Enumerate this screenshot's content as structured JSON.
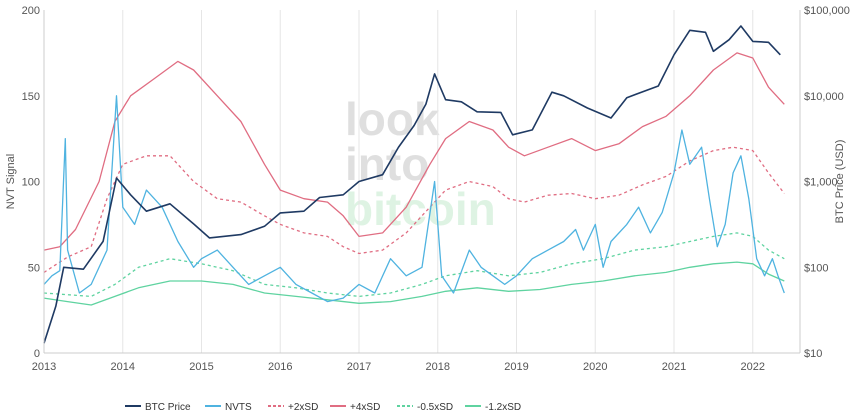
{
  "watermark": {
    "line1": "look",
    "line2": "into",
    "line3": "bitcoin"
  },
  "chart_data": {
    "type": "line",
    "left_axis": {
      "label": "NVT Signal",
      "ticks": [
        "0",
        "50",
        "100",
        "150",
        "200"
      ],
      "range": [
        0,
        200
      ]
    },
    "right_axis": {
      "label": "BTC Price (USD)",
      "scale": "log",
      "ticks": [
        "$10",
        "$100",
        "$1,000",
        "$10,000",
        "$100,000"
      ],
      "range": [
        10,
        100000
      ]
    },
    "x_axis": {
      "ticks": [
        "2013",
        "2014",
        "2015",
        "2016",
        "2017",
        "2018",
        "2019",
        "2020",
        "2021",
        "2022"
      ],
      "range": [
        2013.0,
        2022.6
      ]
    },
    "grid": "vertical",
    "legend_position": "bottom",
    "series": [
      {
        "name": "BTC Price",
        "axis": "right",
        "color": "#1f3a63",
        "dash": "solid",
        "points": [
          [
            2013.0,
            13
          ],
          [
            2013.15,
            35
          ],
          [
            2013.25,
            100
          ],
          [
            2013.5,
            95
          ],
          [
            2013.75,
            200
          ],
          [
            2013.92,
            1100
          ],
          [
            2014.1,
            700
          ],
          [
            2014.3,
            450
          ],
          [
            2014.6,
            550
          ],
          [
            2014.9,
            320
          ],
          [
            2015.1,
            220
          ],
          [
            2015.5,
            240
          ],
          [
            2015.8,
            300
          ],
          [
            2016.0,
            430
          ],
          [
            2016.3,
            450
          ],
          [
            2016.5,
            650
          ],
          [
            2016.8,
            700
          ],
          [
            2017.0,
            1000
          ],
          [
            2017.3,
            1200
          ],
          [
            2017.5,
            2500
          ],
          [
            2017.7,
            4500
          ],
          [
            2017.85,
            8000
          ],
          [
            2017.96,
            18000
          ],
          [
            2018.1,
            9000
          ],
          [
            2018.3,
            8500
          ],
          [
            2018.5,
            6500
          ],
          [
            2018.8,
            6400
          ],
          [
            2018.95,
            3500
          ],
          [
            2019.2,
            4000
          ],
          [
            2019.45,
            11000
          ],
          [
            2019.6,
            10000
          ],
          [
            2019.9,
            7200
          ],
          [
            2020.2,
            5500
          ],
          [
            2020.4,
            9500
          ],
          [
            2020.8,
            13000
          ],
          [
            2021.0,
            30000
          ],
          [
            2021.2,
            58000
          ],
          [
            2021.4,
            55000
          ],
          [
            2021.5,
            33000
          ],
          [
            2021.7,
            45000
          ],
          [
            2021.85,
            65000
          ],
          [
            2022.0,
            43000
          ],
          [
            2022.2,
            42000
          ],
          [
            2022.35,
            30000
          ]
        ]
      },
      {
        "name": "NVTS",
        "axis": "left",
        "color": "#4fb3e0",
        "dash": "solid",
        "points": [
          [
            2013.0,
            40
          ],
          [
            2013.1,
            45
          ],
          [
            2013.2,
            48
          ],
          [
            2013.27,
            125
          ],
          [
            2013.3,
            60
          ],
          [
            2013.45,
            35
          ],
          [
            2013.6,
            40
          ],
          [
            2013.8,
            60
          ],
          [
            2013.92,
            150
          ],
          [
            2014.0,
            85
          ],
          [
            2014.15,
            75
          ],
          [
            2014.3,
            95
          ],
          [
            2014.5,
            85
          ],
          [
            2014.7,
            65
          ],
          [
            2014.9,
            50
          ],
          [
            2015.0,
            55
          ],
          [
            2015.2,
            60
          ],
          [
            2015.4,
            50
          ],
          [
            2015.6,
            40
          ],
          [
            2015.8,
            45
          ],
          [
            2016.0,
            50
          ],
          [
            2016.2,
            40
          ],
          [
            2016.4,
            35
          ],
          [
            2016.6,
            30
          ],
          [
            2016.8,
            32
          ],
          [
            2017.0,
            40
          ],
          [
            2017.2,
            35
          ],
          [
            2017.4,
            55
          ],
          [
            2017.6,
            45
          ],
          [
            2017.8,
            50
          ],
          [
            2017.96,
            100
          ],
          [
            2018.05,
            45
          ],
          [
            2018.2,
            35
          ],
          [
            2018.4,
            60
          ],
          [
            2018.55,
            50
          ],
          [
            2018.7,
            45
          ],
          [
            2018.85,
            40
          ],
          [
            2019.0,
            45
          ],
          [
            2019.2,
            55
          ],
          [
            2019.4,
            60
          ],
          [
            2019.6,
            65
          ],
          [
            2019.75,
            72
          ],
          [
            2019.85,
            60
          ],
          [
            2020.0,
            75
          ],
          [
            2020.1,
            50
          ],
          [
            2020.2,
            65
          ],
          [
            2020.4,
            75
          ],
          [
            2020.55,
            85
          ],
          [
            2020.7,
            70
          ],
          [
            2020.85,
            82
          ],
          [
            2021.0,
            105
          ],
          [
            2021.1,
            130
          ],
          [
            2021.2,
            110
          ],
          [
            2021.35,
            120
          ],
          [
            2021.45,
            90
          ],
          [
            2021.55,
            62
          ],
          [
            2021.65,
            75
          ],
          [
            2021.75,
            105
          ],
          [
            2021.85,
            115
          ],
          [
            2021.95,
            90
          ],
          [
            2022.05,
            55
          ],
          [
            2022.15,
            45
          ],
          [
            2022.25,
            55
          ],
          [
            2022.32,
            45
          ],
          [
            2022.4,
            35
          ]
        ]
      },
      {
        "name": "+2xSD",
        "axis": "left",
        "color": "#e06d82",
        "dash": "dashed",
        "points": [
          [
            2013.0,
            47
          ],
          [
            2013.3,
            56
          ],
          [
            2013.6,
            62
          ],
          [
            2013.8,
            90
          ],
          [
            2014.0,
            110
          ],
          [
            2014.3,
            115
          ],
          [
            2014.6,
            115
          ],
          [
            2014.9,
            100
          ],
          [
            2015.2,
            90
          ],
          [
            2015.5,
            88
          ],
          [
            2015.8,
            80
          ],
          [
            2016.0,
            75
          ],
          [
            2016.3,
            70
          ],
          [
            2016.6,
            68
          ],
          [
            2016.8,
            62
          ],
          [
            2017.0,
            58
          ],
          [
            2017.3,
            60
          ],
          [
            2017.6,
            70
          ],
          [
            2017.9,
            85
          ],
          [
            2018.1,
            95
          ],
          [
            2018.4,
            100
          ],
          [
            2018.7,
            97
          ],
          [
            2018.9,
            90
          ],
          [
            2019.1,
            88
          ],
          [
            2019.4,
            92
          ],
          [
            2019.7,
            93
          ],
          [
            2020.0,
            90
          ],
          [
            2020.3,
            92
          ],
          [
            2020.6,
            98
          ],
          [
            2020.9,
            103
          ],
          [
            2021.2,
            112
          ],
          [
            2021.5,
            118
          ],
          [
            2021.75,
            120
          ],
          [
            2022.0,
            118
          ],
          [
            2022.2,
            105
          ],
          [
            2022.4,
            93
          ]
        ]
      },
      {
        "name": "+4xSD",
        "axis": "left",
        "color": "#e06d82",
        "dash": "solid",
        "points": [
          [
            2013.0,
            60
          ],
          [
            2013.2,
            62
          ],
          [
            2013.4,
            72
          ],
          [
            2013.7,
            100
          ],
          [
            2013.9,
            135
          ],
          [
            2014.1,
            150
          ],
          [
            2014.4,
            160
          ],
          [
            2014.7,
            170
          ],
          [
            2014.9,
            165
          ],
          [
            2015.2,
            150
          ],
          [
            2015.5,
            135
          ],
          [
            2015.8,
            110
          ],
          [
            2016.0,
            95
          ],
          [
            2016.3,
            90
          ],
          [
            2016.6,
            88
          ],
          [
            2016.8,
            80
          ],
          [
            2017.0,
            68
          ],
          [
            2017.3,
            70
          ],
          [
            2017.6,
            85
          ],
          [
            2017.9,
            110
          ],
          [
            2018.1,
            125
          ],
          [
            2018.4,
            135
          ],
          [
            2018.7,
            130
          ],
          [
            2018.9,
            120
          ],
          [
            2019.1,
            115
          ],
          [
            2019.4,
            120
          ],
          [
            2019.7,
            125
          ],
          [
            2020.0,
            118
          ],
          [
            2020.3,
            122
          ],
          [
            2020.6,
            132
          ],
          [
            2020.9,
            138
          ],
          [
            2021.2,
            150
          ],
          [
            2021.5,
            165
          ],
          [
            2021.8,
            175
          ],
          [
            2022.0,
            172
          ],
          [
            2022.2,
            155
          ],
          [
            2022.4,
            145
          ]
        ]
      },
      {
        "name": "-0.5xSD",
        "axis": "left",
        "color": "#5fd3a0",
        "dash": "dashed",
        "points": [
          [
            2013.0,
            35
          ],
          [
            2013.3,
            34
          ],
          [
            2013.6,
            33
          ],
          [
            2013.9,
            40
          ],
          [
            2014.2,
            50
          ],
          [
            2014.6,
            55
          ],
          [
            2015.0,
            52
          ],
          [
            2015.4,
            48
          ],
          [
            2015.8,
            40
          ],
          [
            2016.2,
            38
          ],
          [
            2016.6,
            35
          ],
          [
            2017.0,
            33
          ],
          [
            2017.4,
            35
          ],
          [
            2017.8,
            40
          ],
          [
            2018.1,
            45
          ],
          [
            2018.5,
            48
          ],
          [
            2018.9,
            45
          ],
          [
            2019.3,
            47
          ],
          [
            2019.7,
            52
          ],
          [
            2020.1,
            55
          ],
          [
            2020.5,
            60
          ],
          [
            2020.9,
            62
          ],
          [
            2021.2,
            65
          ],
          [
            2021.5,
            68
          ],
          [
            2021.8,
            70
          ],
          [
            2022.0,
            68
          ],
          [
            2022.2,
            60
          ],
          [
            2022.4,
            55
          ]
        ]
      },
      {
        "name": "-1.2xSD",
        "axis": "left",
        "color": "#5fd3a0",
        "dash": "solid",
        "points": [
          [
            2013.0,
            32
          ],
          [
            2013.3,
            30
          ],
          [
            2013.6,
            28
          ],
          [
            2013.9,
            33
          ],
          [
            2014.2,
            38
          ],
          [
            2014.6,
            42
          ],
          [
            2015.0,
            42
          ],
          [
            2015.4,
            40
          ],
          [
            2015.8,
            35
          ],
          [
            2016.2,
            33
          ],
          [
            2016.6,
            31
          ],
          [
            2017.0,
            29
          ],
          [
            2017.4,
            30
          ],
          [
            2017.8,
            33
          ],
          [
            2018.1,
            36
          ],
          [
            2018.5,
            38
          ],
          [
            2018.9,
            36
          ],
          [
            2019.3,
            37
          ],
          [
            2019.7,
            40
          ],
          [
            2020.1,
            42
          ],
          [
            2020.5,
            45
          ],
          [
            2020.9,
            47
          ],
          [
            2021.2,
            50
          ],
          [
            2021.5,
            52
          ],
          [
            2021.8,
            53
          ],
          [
            2022.0,
            52
          ],
          [
            2022.2,
            46
          ],
          [
            2022.4,
            42
          ]
        ]
      }
    ]
  }
}
